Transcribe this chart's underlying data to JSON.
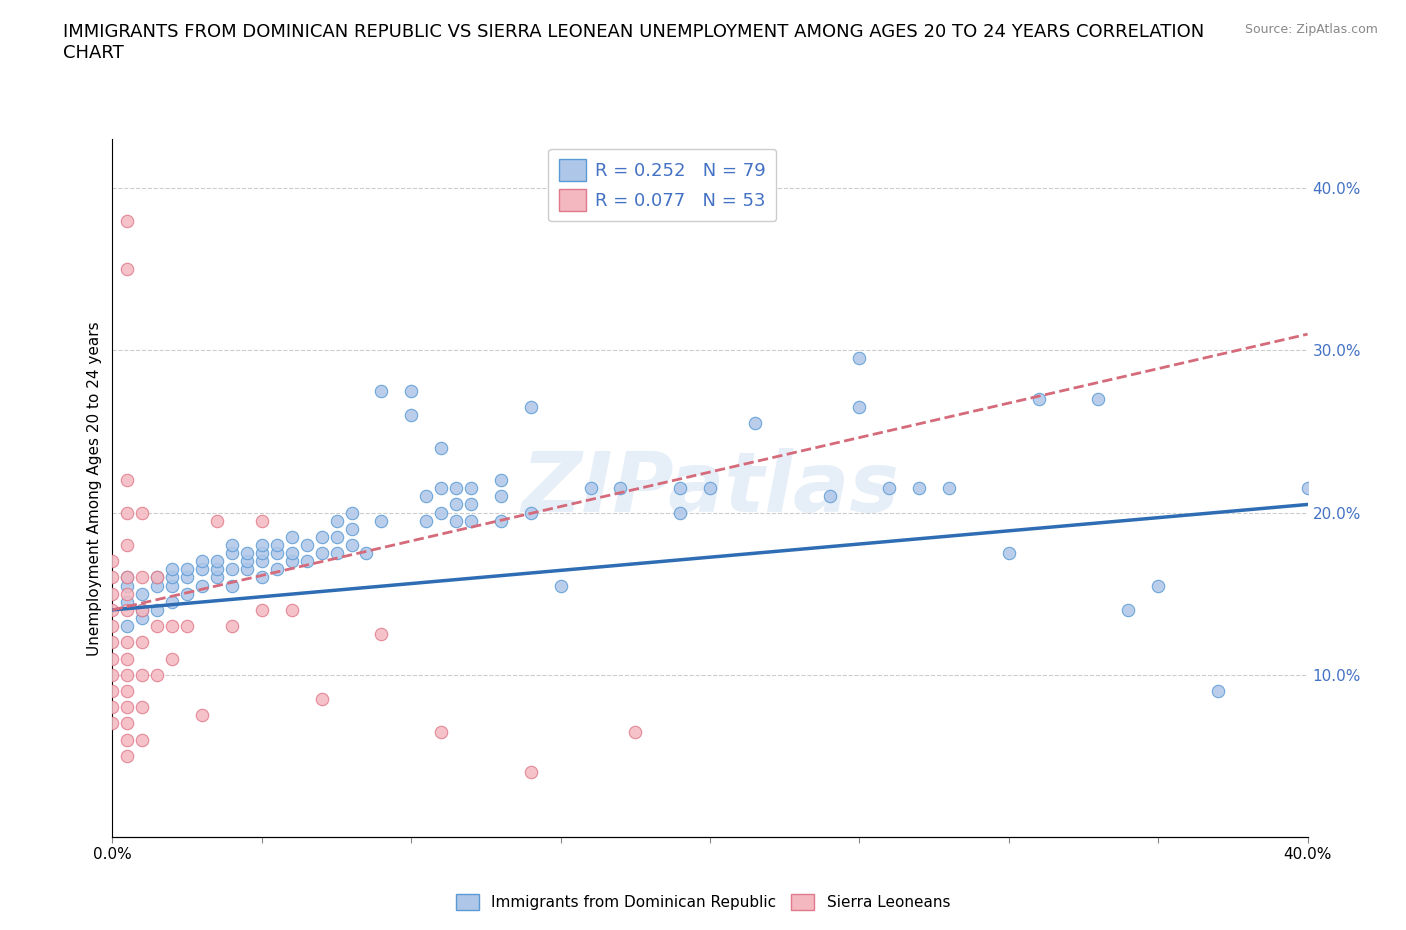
{
  "title": "IMMIGRANTS FROM DOMINICAN REPUBLIC VS SIERRA LEONEAN UNEMPLOYMENT AMONG AGES 20 TO 24 YEARS CORRELATION\nCHART",
  "source_text": "Source: ZipAtlas.com",
  "ylabel": "Unemployment Among Ages 20 to 24 years",
  "ylabel_right_ticks": [
    "10.0%",
    "20.0%",
    "30.0%",
    "40.0%"
  ],
  "ylabel_right_vals": [
    0.1,
    0.2,
    0.3,
    0.4
  ],
  "xlim": [
    0.0,
    0.4
  ],
  "ylim": [
    0.0,
    0.43
  ],
  "legend_entries": [
    {
      "label": "Immigrants from Dominican Republic",
      "color": "#aec6e8"
    },
    {
      "label": "Sierra Leoneans",
      "color": "#f4b8c1"
    }
  ],
  "r_box": [
    {
      "R": "0.252",
      "N": "79"
    },
    {
      "R": "0.077",
      "N": "53"
    }
  ],
  "blue_scatter": [
    [
      0.005,
      0.13
    ],
    [
      0.005,
      0.145
    ],
    [
      0.005,
      0.155
    ],
    [
      0.005,
      0.16
    ],
    [
      0.01,
      0.135
    ],
    [
      0.01,
      0.14
    ],
    [
      0.01,
      0.15
    ],
    [
      0.015,
      0.14
    ],
    [
      0.015,
      0.155
    ],
    [
      0.015,
      0.16
    ],
    [
      0.02,
      0.145
    ],
    [
      0.02,
      0.155
    ],
    [
      0.02,
      0.16
    ],
    [
      0.02,
      0.165
    ],
    [
      0.025,
      0.15
    ],
    [
      0.025,
      0.16
    ],
    [
      0.025,
      0.165
    ],
    [
      0.03,
      0.155
    ],
    [
      0.03,
      0.165
    ],
    [
      0.03,
      0.17
    ],
    [
      0.035,
      0.16
    ],
    [
      0.035,
      0.165
    ],
    [
      0.035,
      0.17
    ],
    [
      0.04,
      0.155
    ],
    [
      0.04,
      0.165
    ],
    [
      0.04,
      0.175
    ],
    [
      0.04,
      0.18
    ],
    [
      0.045,
      0.165
    ],
    [
      0.045,
      0.17
    ],
    [
      0.045,
      0.175
    ],
    [
      0.05,
      0.16
    ],
    [
      0.05,
      0.17
    ],
    [
      0.05,
      0.175
    ],
    [
      0.05,
      0.18
    ],
    [
      0.055,
      0.165
    ],
    [
      0.055,
      0.175
    ],
    [
      0.055,
      0.18
    ],
    [
      0.06,
      0.17
    ],
    [
      0.06,
      0.175
    ],
    [
      0.06,
      0.185
    ],
    [
      0.065,
      0.17
    ],
    [
      0.065,
      0.18
    ],
    [
      0.07,
      0.175
    ],
    [
      0.07,
      0.185
    ],
    [
      0.075,
      0.175
    ],
    [
      0.075,
      0.185
    ],
    [
      0.075,
      0.195
    ],
    [
      0.08,
      0.18
    ],
    [
      0.08,
      0.19
    ],
    [
      0.08,
      0.2
    ],
    [
      0.085,
      0.175
    ],
    [
      0.09,
      0.195
    ],
    [
      0.09,
      0.275
    ],
    [
      0.1,
      0.26
    ],
    [
      0.1,
      0.275
    ],
    [
      0.105,
      0.195
    ],
    [
      0.105,
      0.21
    ],
    [
      0.11,
      0.2
    ],
    [
      0.11,
      0.215
    ],
    [
      0.11,
      0.24
    ],
    [
      0.115,
      0.205
    ],
    [
      0.115,
      0.215
    ],
    [
      0.115,
      0.195
    ],
    [
      0.12,
      0.195
    ],
    [
      0.12,
      0.205
    ],
    [
      0.12,
      0.215
    ],
    [
      0.13,
      0.195
    ],
    [
      0.13,
      0.21
    ],
    [
      0.13,
      0.22
    ],
    [
      0.14,
      0.2
    ],
    [
      0.14,
      0.265
    ],
    [
      0.15,
      0.155
    ],
    [
      0.16,
      0.215
    ],
    [
      0.17,
      0.215
    ],
    [
      0.19,
      0.2
    ],
    [
      0.19,
      0.215
    ],
    [
      0.2,
      0.215
    ],
    [
      0.215,
      0.255
    ],
    [
      0.24,
      0.21
    ],
    [
      0.25,
      0.295
    ],
    [
      0.25,
      0.265
    ],
    [
      0.26,
      0.215
    ],
    [
      0.27,
      0.215
    ],
    [
      0.28,
      0.215
    ],
    [
      0.3,
      0.175
    ],
    [
      0.31,
      0.27
    ],
    [
      0.33,
      0.27
    ],
    [
      0.34,
      0.14
    ],
    [
      0.35,
      0.155
    ],
    [
      0.37,
      0.09
    ],
    [
      0.4,
      0.215
    ]
  ],
  "pink_scatter": [
    [
      0.0,
      0.07
    ],
    [
      0.0,
      0.08
    ],
    [
      0.0,
      0.09
    ],
    [
      0.0,
      0.1
    ],
    [
      0.0,
      0.11
    ],
    [
      0.0,
      0.12
    ],
    [
      0.0,
      0.13
    ],
    [
      0.0,
      0.14
    ],
    [
      0.0,
      0.15
    ],
    [
      0.0,
      0.16
    ],
    [
      0.0,
      0.17
    ],
    [
      0.005,
      0.05
    ],
    [
      0.005,
      0.06
    ],
    [
      0.005,
      0.07
    ],
    [
      0.005,
      0.08
    ],
    [
      0.005,
      0.09
    ],
    [
      0.005,
      0.1
    ],
    [
      0.005,
      0.11
    ],
    [
      0.005,
      0.12
    ],
    [
      0.005,
      0.14
    ],
    [
      0.005,
      0.15
    ],
    [
      0.005,
      0.16
    ],
    [
      0.005,
      0.18
    ],
    [
      0.005,
      0.2
    ],
    [
      0.005,
      0.22
    ],
    [
      0.005,
      0.35
    ],
    [
      0.005,
      0.38
    ],
    [
      0.01,
      0.06
    ],
    [
      0.01,
      0.08
    ],
    [
      0.01,
      0.1
    ],
    [
      0.01,
      0.12
    ],
    [
      0.01,
      0.14
    ],
    [
      0.01,
      0.16
    ],
    [
      0.01,
      0.2
    ],
    [
      0.015,
      0.1
    ],
    [
      0.015,
      0.13
    ],
    [
      0.015,
      0.16
    ],
    [
      0.02,
      0.11
    ],
    [
      0.02,
      0.13
    ],
    [
      0.025,
      0.13
    ],
    [
      0.03,
      0.075
    ],
    [
      0.035,
      0.195
    ],
    [
      0.04,
      0.13
    ],
    [
      0.05,
      0.14
    ],
    [
      0.05,
      0.195
    ],
    [
      0.06,
      0.14
    ],
    [
      0.07,
      0.085
    ],
    [
      0.09,
      0.125
    ],
    [
      0.11,
      0.065
    ],
    [
      0.14,
      0.04
    ],
    [
      0.175,
      0.065
    ]
  ],
  "blue_line": {
    "x0": 0.0,
    "y0": 0.14,
    "x1": 0.4,
    "y1": 0.205
  },
  "pink_line": {
    "x0": 0.0,
    "y0": 0.14,
    "x1": 0.4,
    "y1": 0.31
  },
  "watermark": "ZIPatlas",
  "title_fontsize": 13,
  "axis_label_fontsize": 11,
  "tick_fontsize": 11,
  "scatter_size": 80,
  "blue_color": "#aec6e8",
  "blue_edge_color": "#5b9bd5",
  "pink_color": "#f4b8c1",
  "pink_edge_color": "#e07a8a",
  "blue_line_color": "#2e6db4",
  "pink_line_color": "#d46a7a"
}
